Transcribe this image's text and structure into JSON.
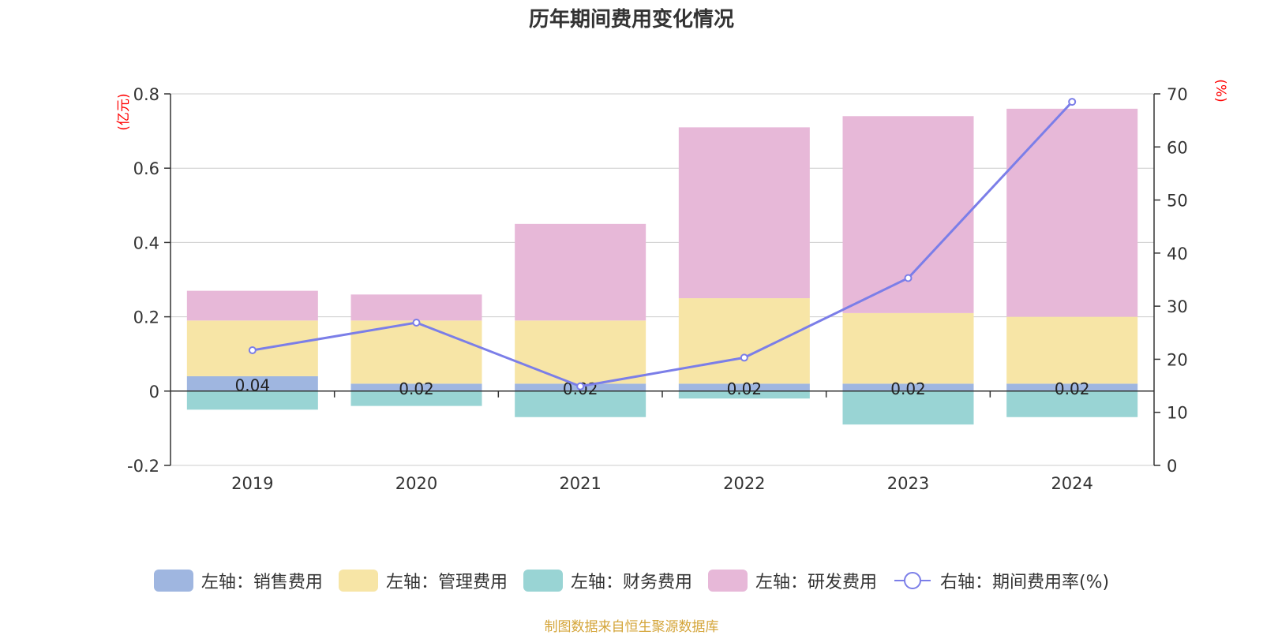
{
  "title": "历年期间费用变化情况",
  "source_text": "制图数据来自恒生聚源数据库",
  "colors": {
    "sales": "#9fb6e0",
    "admin": "#f7e5a6",
    "finance": "#99d4d4",
    "rd": "#e7b8d8",
    "rate": "#7b7ee8",
    "axis_unit": "#ff0000",
    "source": "#d4a53a"
  },
  "chart_data": {
    "type": "bar",
    "stacked": true,
    "categories": [
      "2019",
      "2020",
      "2021",
      "2022",
      "2023",
      "2024"
    ],
    "left_axis": {
      "unit_label": "(亿元)",
      "ylim": [
        -0.2,
        0.8
      ],
      "ticks": [
        "-0.2",
        "0",
        "0.2",
        "0.4",
        "0.6",
        "0.8"
      ]
    },
    "right_axis": {
      "unit_label": "(%)",
      "ylim": [
        0,
        70
      ],
      "ticks": [
        "0",
        "10",
        "20",
        "30",
        "40",
        "50",
        "60",
        "70"
      ]
    },
    "grid": true,
    "legend_position": "bottom",
    "series": [
      {
        "key": "sales",
        "name": "左轴：销售费用",
        "axis": "left",
        "values": [
          0.04,
          0.02,
          0.02,
          0.02,
          0.02,
          0.02
        ],
        "labels": [
          "0.04",
          "0.02",
          "0.02",
          "0.02",
          "0.02",
          "0.02"
        ]
      },
      {
        "key": "admin",
        "name": "左轴：管理费用",
        "axis": "left",
        "values": [
          0.15,
          0.17,
          0.17,
          0.23,
          0.19,
          0.18
        ]
      },
      {
        "key": "finance",
        "name": "左轴：财务费用",
        "axis": "left",
        "values": [
          -0.05,
          -0.04,
          -0.07,
          -0.02,
          -0.09,
          -0.07
        ]
      },
      {
        "key": "rd",
        "name": "左轴：研发费用",
        "axis": "left",
        "values": [
          0.08,
          0.07,
          0.26,
          0.46,
          0.53,
          0.56
        ]
      },
      {
        "key": "rate",
        "name": "右轴：期间费用率(%)",
        "axis": "right",
        "type": "line",
        "values": [
          21.7,
          26.9,
          14.9,
          20.3,
          35.3,
          68.5
        ]
      }
    ]
  }
}
